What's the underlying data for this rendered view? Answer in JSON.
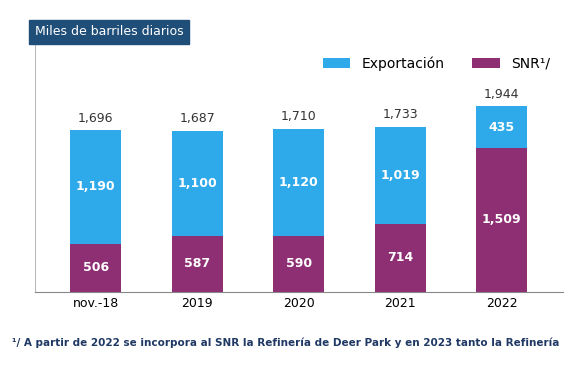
{
  "chart_data": {
    "type": "bar",
    "stacked": true,
    "data_labels": true,
    "tick_labels": "x",
    "subtitle": "Miles de barriles diarios",
    "categories": [
      "nov.-18",
      "2019",
      "2020",
      "2021",
      "2022"
    ],
    "series": [
      {
        "name": "SNR¹/",
        "color": "#8e2f73",
        "values": [
          506,
          587,
          590,
          714,
          1509
        ],
        "value_labels": [
          "506",
          "587",
          "590",
          "714",
          "1,509"
        ]
      },
      {
        "name": "Exportación",
        "color": "#2eaaea",
        "values": [
          1190,
          1100,
          1120,
          1019,
          435
        ],
        "value_labels": [
          "1,190",
          "1,100",
          "1,120",
          "1,019",
          "435"
        ]
      }
    ],
    "totals": [
      1696,
      1687,
      1710,
      1733,
      1944
    ],
    "total_labels": [
      "1,696",
      "1,687",
      "1,710",
      "1,733",
      "1,944"
    ],
    "legend": "upper right",
    "ylim": [
      0,
      2600
    ],
    "yticks": [],
    "annotations": [
      "¹/ A partir de 2022 se incorpora al SNR la Refinería de Deer Park y en 2023 tanto la Refinería"
    ]
  }
}
